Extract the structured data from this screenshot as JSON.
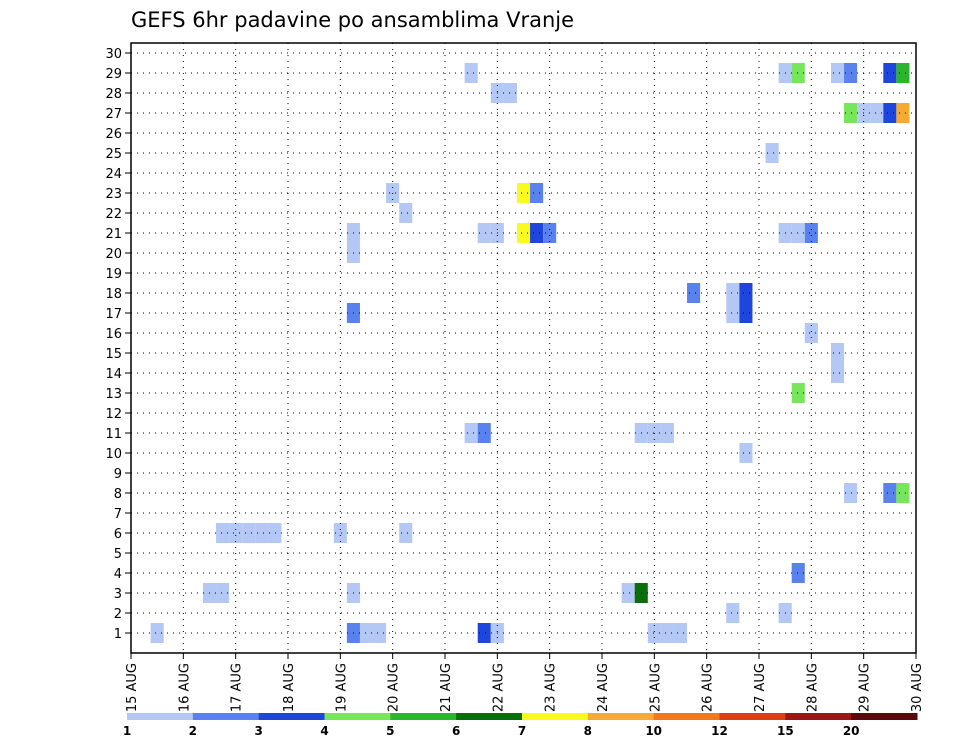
{
  "chart_data": {
    "type": "heatmap",
    "title": "GEFS 6hr padavine po ansamblima Vranje",
    "xlabel": "",
    "ylabel": "",
    "x_ticks": [
      "15 AUG",
      "16 AUG",
      "17 AUG",
      "18 AUG",
      "19 AUG",
      "20 AUG",
      "21 AUG",
      "22 AUG",
      "23 AUG",
      "24 AUG",
      "25 AUG",
      "26 AUG",
      "27 AUG",
      "28 AUG",
      "29 AUG",
      "30 AUG"
    ],
    "y_ticks": [
      "1",
      "2",
      "3",
      "4",
      "5",
      "6",
      "7",
      "8",
      "9",
      "10",
      "11",
      "12",
      "13",
      "14",
      "15",
      "16",
      "17",
      "18",
      "19",
      "20",
      "21",
      "22",
      "23",
      "24",
      "25",
      "26",
      "27",
      "28",
      "29",
      "30"
    ],
    "x_unit": "6h step from 15 AUG 00Z (0-60)",
    "y_range": [
      1,
      30
    ],
    "grid": true,
    "colorbar": {
      "labels": [
        "1",
        "2",
        "3",
        "4",
        "5",
        "6",
        "7",
        "8",
        "10",
        "12",
        "15",
        "20"
      ],
      "colors": [
        "#b4c8f5",
        "#5a82ee",
        "#1e46dc",
        "#78e65a",
        "#2db42d",
        "#0a6e0a",
        "#fafa1e",
        "#f5aa32",
        "#f57814",
        "#e13c14",
        "#a01414",
        "#5a0a0a"
      ]
    },
    "cells": [
      {
        "t": 2,
        "m": 1,
        "v": 1.5
      },
      {
        "t": 6,
        "m": 3,
        "v": 1.5
      },
      {
        "t": 7,
        "m": 3,
        "v": 1.5
      },
      {
        "t": 7,
        "m": 6,
        "v": 1.5
      },
      {
        "t": 8,
        "m": 6,
        "v": 1.5
      },
      {
        "t": 9,
        "m": 6,
        "v": 1.5
      },
      {
        "t": 10,
        "m": 6,
        "v": 1.5
      },
      {
        "t": 11,
        "m": 6,
        "v": 1.5
      },
      {
        "t": 16,
        "m": 6,
        "v": 1.5
      },
      {
        "t": 17,
        "m": 3,
        "v": 1.5
      },
      {
        "t": 17,
        "m": 1,
        "v": 2.5
      },
      {
        "t": 18,
        "m": 1,
        "v": 1.5
      },
      {
        "t": 17,
        "m": 20,
        "v": 1.5
      },
      {
        "t": 17,
        "m": 21,
        "v": 1.5
      },
      {
        "t": 17,
        "m": 17,
        "v": 2.5
      },
      {
        "t": 19,
        "m": 1,
        "v": 1.5
      },
      {
        "t": 20,
        "m": 23,
        "v": 1.5
      },
      {
        "t": 21,
        "m": 22,
        "v": 1.5
      },
      {
        "t": 21,
        "m": 6,
        "v": 1.5
      },
      {
        "t": 26,
        "m": 11,
        "v": 1.5
      },
      {
        "t": 26,
        "m": 29,
        "v": 1.5
      },
      {
        "t": 27,
        "m": 11,
        "v": 2.5
      },
      {
        "t": 27,
        "m": 21,
        "v": 1.5
      },
      {
        "t": 28,
        "m": 21,
        "v": 1.5
      },
      {
        "t": 27,
        "m": 1,
        "v": 3.5
      },
      {
        "t": 28,
        "m": 1,
        "v": 1.5
      },
      {
        "t": 28,
        "m": 28,
        "v": 1.5
      },
      {
        "t": 29,
        "m": 28,
        "v": 1.5
      },
      {
        "t": 30,
        "m": 23,
        "v": 7.5
      },
      {
        "t": 31,
        "m": 23,
        "v": 2.5
      },
      {
        "t": 30,
        "m": 21,
        "v": 7.5
      },
      {
        "t": 31,
        "m": 21,
        "v": 3.5
      },
      {
        "t": 32,
        "m": 21,
        "v": 2.5
      },
      {
        "t": 38,
        "m": 3,
        "v": 1.5
      },
      {
        "t": 39,
        "m": 3,
        "v": 6.5
      },
      {
        "t": 39,
        "m": 11,
        "v": 1.5
      },
      {
        "t": 40,
        "m": 11,
        "v": 1.5
      },
      {
        "t": 41,
        "m": 11,
        "v": 1.5
      },
      {
        "t": 40,
        "m": 1,
        "v": 1.5
      },
      {
        "t": 41,
        "m": 1,
        "v": 1.5
      },
      {
        "t": 42,
        "m": 1,
        "v": 1.5
      },
      {
        "t": 43,
        "m": 18,
        "v": 2.5
      },
      {
        "t": 46,
        "m": 2,
        "v": 1.5
      },
      {
        "t": 46,
        "m": 17,
        "v": 1.5
      },
      {
        "t": 46,
        "m": 18,
        "v": 1.5
      },
      {
        "t": 47,
        "m": 17,
        "v": 3.5
      },
      {
        "t": 47,
        "m": 18,
        "v": 3.5
      },
      {
        "t": 47,
        "m": 10,
        "v": 1.5
      },
      {
        "t": 49,
        "m": 25,
        "v": 1.5
      },
      {
        "t": 50,
        "m": 2,
        "v": 1.5
      },
      {
        "t": 50,
        "m": 21,
        "v": 1.5
      },
      {
        "t": 51,
        "m": 21,
        "v": 1.5
      },
      {
        "t": 52,
        "m": 21,
        "v": 2.5
      },
      {
        "t": 50,
        "m": 29,
        "v": 1.5
      },
      {
        "t": 51,
        "m": 29,
        "v": 4.5
      },
      {
        "t": 51,
        "m": 4,
        "v": 2.5
      },
      {
        "t": 51,
        "m": 13,
        "v": 4.5
      },
      {
        "t": 52,
        "m": 16,
        "v": 1.5
      },
      {
        "t": 54,
        "m": 14,
        "v": 1.5
      },
      {
        "t": 54,
        "m": 15,
        "v": 1.5
      },
      {
        "t": 54,
        "m": 29,
        "v": 1.5
      },
      {
        "t": 55,
        "m": 29,
        "v": 2.5
      },
      {
        "t": 55,
        "m": 8,
        "v": 1.5
      },
      {
        "t": 55,
        "m": 27,
        "v": 4.5
      },
      {
        "t": 56,
        "m": 27,
        "v": 1.5
      },
      {
        "t": 57,
        "m": 27,
        "v": 1.5
      },
      {
        "t": 58,
        "m": 27,
        "v": 3.5
      },
      {
        "t": 59,
        "m": 27,
        "v": 9.0
      },
      {
        "t": 58,
        "m": 29,
        "v": 3.5
      },
      {
        "t": 59,
        "m": 29,
        "v": 5.5
      },
      {
        "t": 58,
        "m": 8,
        "v": 2.5
      },
      {
        "t": 59,
        "m": 8,
        "v": 4.5
      }
    ]
  }
}
